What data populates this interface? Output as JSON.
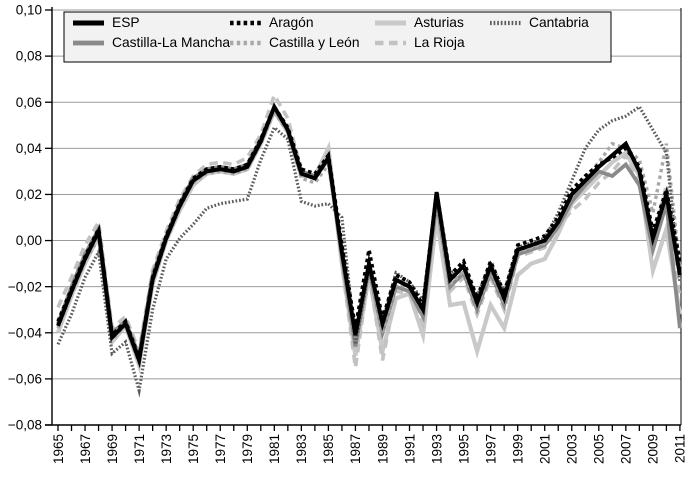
{
  "chart_data": {
    "type": "line",
    "title": "",
    "xlabel": "",
    "ylabel": "",
    "grid": "horizontal",
    "legend_position": "top-left-inside",
    "ylim": [
      -0.08,
      0.1
    ],
    "y_ticks": [
      {
        "value": 0.1,
        "label": "0,10"
      },
      {
        "value": 0.08,
        "label": "0,08"
      },
      {
        "value": 0.06,
        "label": "0,06"
      },
      {
        "value": 0.04,
        "label": "0,04"
      },
      {
        "value": 0.02,
        "label": "0,02"
      },
      {
        "value": 0.0,
        "label": "0,00"
      },
      {
        "value": -0.02,
        "label": "−0,02"
      },
      {
        "value": -0.04,
        "label": "−0,04"
      },
      {
        "value": -0.06,
        "label": "−0,06"
      },
      {
        "value": -0.08,
        "label": "−0,08"
      }
    ],
    "x": [
      1965,
      1966,
      1967,
      1968,
      1969,
      1970,
      1971,
      1972,
      1973,
      1974,
      1975,
      1976,
      1977,
      1978,
      1979,
      1980,
      1981,
      1982,
      1983,
      1984,
      1985,
      1986,
      1987,
      1988,
      1989,
      1990,
      1991,
      1992,
      1993,
      1994,
      1995,
      1996,
      1997,
      1998,
      1999,
      2000,
      2001,
      2002,
      2003,
      2004,
      2005,
      2006,
      2007,
      2008,
      2009,
      2010,
      2011
    ],
    "x_tick_labels": [
      "1965",
      "1967",
      "1969",
      "1971",
      "1973",
      "1975",
      "1977",
      "1979",
      "1981",
      "1983",
      "1985",
      "1987",
      "1989",
      "1991",
      "1993",
      "1995",
      "1997",
      "1999",
      "2001",
      "2003",
      "2005",
      "2007",
      "2009",
      "2011"
    ],
    "series": [
      {
        "name": "ESP",
        "color": "#000000",
        "dash": "",
        "width": 4,
        "values": [
          -0.037,
          -0.022,
          -0.008,
          0.004,
          -0.042,
          -0.036,
          -0.052,
          -0.017,
          0.001,
          0.015,
          0.026,
          0.03,
          0.031,
          0.03,
          0.032,
          0.043,
          0.058,
          0.048,
          0.029,
          0.027,
          0.036,
          -0.005,
          -0.041,
          -0.01,
          -0.036,
          -0.017,
          -0.02,
          -0.03,
          0.021,
          -0.017,
          -0.011,
          -0.027,
          -0.011,
          -0.025,
          -0.004,
          -0.002,
          0.0,
          0.008,
          0.02,
          0.026,
          0.032,
          0.037,
          0.042,
          0.03,
          0.001,
          0.02,
          -0.015
        ]
      },
      {
        "name": "Aragón",
        "color": "#000000",
        "dash": "3.6 3.2",
        "width": 3.6,
        "values": [
          -0.035,
          -0.021,
          -0.007,
          0.005,
          -0.041,
          -0.035,
          -0.051,
          -0.016,
          0.002,
          0.016,
          0.027,
          0.031,
          0.032,
          0.031,
          0.033,
          0.044,
          0.058,
          0.049,
          0.031,
          0.029,
          0.037,
          -0.002,
          -0.038,
          -0.004,
          -0.034,
          -0.015,
          -0.018,
          -0.028,
          0.021,
          -0.015,
          -0.009,
          -0.025,
          -0.009,
          -0.023,
          -0.002,
          0.0,
          0.002,
          0.01,
          0.022,
          0.028,
          0.033,
          0.036,
          0.04,
          0.032,
          0.004,
          0.022,
          -0.009
        ]
      },
      {
        "name": "Asturias",
        "color": "#c9c9c9",
        "dash": "",
        "width": 4.2,
        "values": [
          -0.04,
          -0.024,
          -0.01,
          0.002,
          -0.044,
          -0.037,
          -0.054,
          -0.019,
          0.0,
          0.013,
          0.024,
          0.029,
          0.03,
          0.029,
          0.031,
          0.042,
          0.056,
          0.047,
          0.028,
          0.028,
          0.04,
          -0.01,
          -0.05,
          -0.015,
          -0.048,
          -0.025,
          -0.023,
          -0.041,
          0.01,
          -0.028,
          -0.027,
          -0.048,
          -0.028,
          -0.038,
          -0.015,
          -0.01,
          -0.008,
          0.003,
          0.016,
          0.022,
          0.028,
          0.034,
          0.038,
          0.028,
          -0.013,
          0.005,
          -0.032
        ]
      },
      {
        "name": "Cantabria",
        "color": "#5c5c5c",
        "dash": "1.7 1.9",
        "width": 3.2,
        "values": [
          -0.045,
          -0.032,
          -0.016,
          -0.005,
          -0.049,
          -0.044,
          -0.065,
          -0.03,
          -0.008,
          0.001,
          0.007,
          0.014,
          0.016,
          0.017,
          0.018,
          0.035,
          0.049,
          0.044,
          0.017,
          0.015,
          0.016,
          0.01,
          -0.045,
          -0.012,
          -0.035,
          -0.014,
          -0.018,
          -0.026,
          0.018,
          -0.014,
          -0.012,
          -0.024,
          -0.01,
          -0.022,
          -0.003,
          -0.001,
          0.001,
          0.012,
          0.026,
          0.04,
          0.048,
          0.052,
          0.054,
          0.058,
          0.048,
          0.038,
          -0.018
        ]
      },
      {
        "name": "Castilla-La Mancha",
        "color": "#8a8a8a",
        "dash": "",
        "width": 3.8,
        "values": [
          -0.036,
          -0.02,
          -0.006,
          0.005,
          -0.04,
          -0.035,
          -0.05,
          -0.015,
          0.002,
          0.016,
          0.027,
          0.031,
          0.032,
          0.031,
          0.033,
          0.044,
          0.057,
          0.048,
          0.03,
          0.028,
          0.035,
          -0.007,
          -0.046,
          -0.012,
          -0.04,
          -0.02,
          -0.022,
          -0.033,
          0.017,
          -0.02,
          -0.014,
          -0.03,
          -0.014,
          -0.028,
          -0.006,
          -0.004,
          -0.002,
          0.006,
          0.017,
          0.024,
          0.03,
          0.028,
          0.033,
          0.024,
          -0.004,
          0.016,
          -0.038
        ]
      },
      {
        "name": "Castilla y León",
        "color": "#a8a8a8",
        "dash": "3.4 3.4",
        "width": 3.4,
        "values": [
          -0.038,
          -0.023,
          -0.009,
          0.001,
          -0.043,
          -0.037,
          -0.053,
          -0.018,
          0.0,
          0.014,
          0.025,
          0.029,
          0.03,
          0.029,
          0.031,
          0.042,
          0.056,
          0.047,
          0.027,
          0.025,
          0.033,
          -0.006,
          -0.043,
          -0.01,
          -0.04,
          -0.019,
          -0.02,
          -0.031,
          0.018,
          -0.019,
          -0.013,
          -0.029,
          -0.013,
          -0.027,
          -0.005,
          -0.003,
          -0.001,
          0.008,
          0.019,
          0.027,
          0.034,
          0.042,
          0.04,
          0.035,
          0.012,
          0.042,
          -0.012
        ]
      },
      {
        "name": "La Rioja",
        "color": "#c2c2c2",
        "dash": "8.5 5.5",
        "width": 3.6,
        "values": [
          -0.029,
          -0.016,
          -0.002,
          0.008,
          -0.038,
          -0.033,
          -0.048,
          -0.013,
          0.004,
          0.018,
          0.028,
          0.033,
          0.034,
          0.033,
          0.036,
          0.046,
          0.063,
          0.053,
          0.03,
          0.028,
          0.038,
          -0.01,
          -0.055,
          -0.014,
          -0.052,
          -0.022,
          -0.023,
          -0.036,
          0.015,
          -0.022,
          -0.016,
          -0.032,
          -0.016,
          -0.03,
          -0.007,
          -0.005,
          -0.003,
          0.006,
          0.013,
          0.018,
          0.025,
          0.03,
          0.037,
          0.026,
          0.0,
          0.024,
          -0.025
        ]
      }
    ],
    "style": {
      "grid_color": "#9b9b9b",
      "axis_color": "#000000",
      "legend_bg": "#f2f2f2",
      "legend_border": "#000000"
    }
  }
}
